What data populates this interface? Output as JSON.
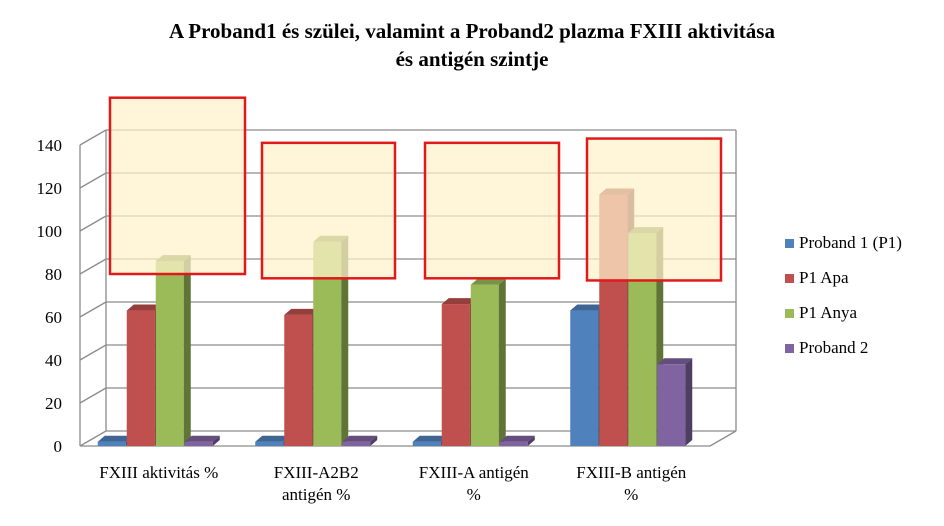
{
  "chart_data": {
    "type": "bar",
    "title_line1": "A Proband1 és szülei, valamint a Proband2 plazma  FXIII aktivitása",
    "title_line2": "és antigén szintje",
    "xlabel": "",
    "ylabel": "",
    "ylim": [
      0,
      140
    ],
    "yticks": [
      "0",
      "20",
      "40",
      "60",
      "80",
      "100",
      "120",
      "140"
    ],
    "categories": [
      [
        "FXIII aktivitás %"
      ],
      [
        "FXIII-A2B2",
        "antigén %"
      ],
      [
        "FXIII-A antigén",
        "%"
      ],
      [
        "FXIII-B antigén",
        "%"
      ]
    ],
    "series": [
      {
        "name": "Proband 1 (P1)",
        "color": "#4F81BD",
        "values": [
          2,
          2,
          2,
          63
        ]
      },
      {
        "name": "P1 Apa",
        "color": "#C0504D",
        "values": [
          63,
          61,
          66,
          117
        ]
      },
      {
        "name": "P1 Anya",
        "color": "#9BBB59",
        "values": [
          86,
          95,
          75,
          99
        ]
      },
      {
        "name": "Proband 2",
        "color": "#8064A2",
        "values": [
          2,
          2,
          2,
          38
        ]
      }
    ],
    "highlight_ranges": [
      [
        80,
        162
      ],
      [
        78,
        141
      ],
      [
        78,
        141
      ],
      [
        77,
        143
      ]
    ],
    "highlight_color": "#FFF2CC",
    "highlight_border": "#E0191B",
    "legend_position": "right",
    "grid": true
  }
}
